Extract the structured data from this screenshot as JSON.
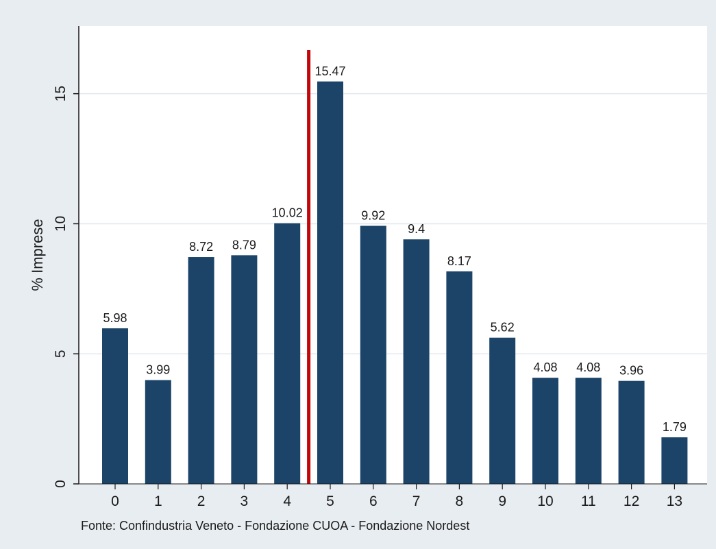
{
  "colors": {
    "background": "#e8edf1",
    "plot_background": "#ffffff",
    "bar": "#1b4468",
    "marker_line": "#c0080b",
    "gridline": "#e3e8ec"
  },
  "chart_data": {
    "type": "bar",
    "title": "",
    "xlabel": "",
    "ylabel": "% Imprese",
    "categories": [
      "0",
      "1",
      "2",
      "3",
      "4",
      "5",
      "6",
      "7",
      "8",
      "9",
      "10",
      "11",
      "12",
      "13"
    ],
    "values": [
      5.98,
      3.99,
      8.72,
      8.79,
      10.02,
      15.47,
      9.92,
      9.4,
      8.17,
      5.62,
      4.08,
      4.08,
      3.96,
      1.79
    ],
    "value_labels": [
      "5.98",
      "3.99",
      "8.72",
      "8.79",
      "10.02",
      "15.47",
      "9.92",
      "9.4",
      "8.17",
      "5.62",
      "4.08",
      "4.08",
      "3.96",
      "1.79"
    ],
    "yticks": [
      0,
      5,
      10,
      15
    ],
    "ytick_labels": [
      "0",
      "5",
      "10",
      "15"
    ],
    "ylim": [
      0,
      17.6
    ],
    "grid": true,
    "legend": "none",
    "vertical_marker": {
      "between_categories": [
        "4",
        "5"
      ],
      "color": "#c0080b"
    },
    "note": "Fonte:  Confindustria Veneto - Fondazione CUOA - Fondazione Nordest"
  }
}
